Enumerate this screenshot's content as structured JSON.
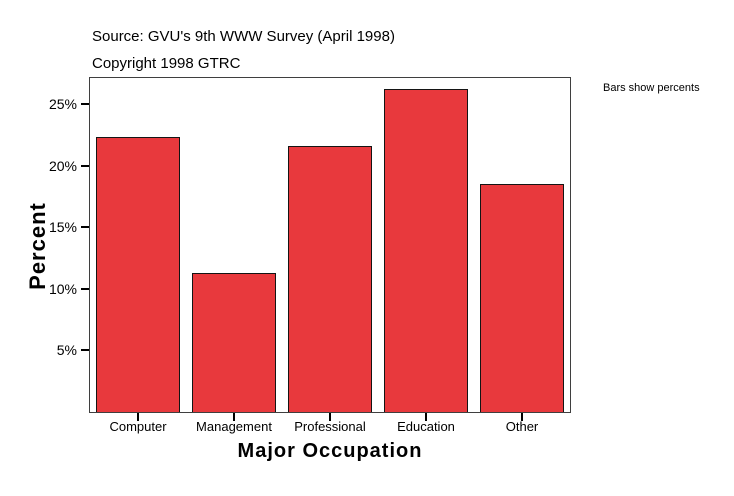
{
  "header": {
    "source": "Source: GVU's 9th WWW Survey (April 1998)",
    "copyright": "Copyright 1998 GTRC"
  },
  "legend": {
    "note": "Bars show percents",
    "position": "right"
  },
  "chart_data": {
    "type": "bar",
    "title": "",
    "categories": [
      "Computer",
      "Management",
      "Professional",
      "Education",
      "Other"
    ],
    "values": [
      22.3,
      11.3,
      21.6,
      26.2,
      18.5
    ],
    "xlabel": "Major Occupation",
    "ylabel": "Percent",
    "yticks": [
      5,
      10,
      15,
      20,
      25
    ],
    "ytick_labels": [
      "5%",
      "10%",
      "15%",
      "20%",
      "25%"
    ],
    "ylim": [
      0,
      27.1
    ],
    "grid": false,
    "bar_width_fraction": 0.865,
    "bar_color": "#E8393D",
    "bar_border_color": "#141414",
    "frame_color": "#3F3F3F",
    "background_color": "#FFFFFF"
  }
}
